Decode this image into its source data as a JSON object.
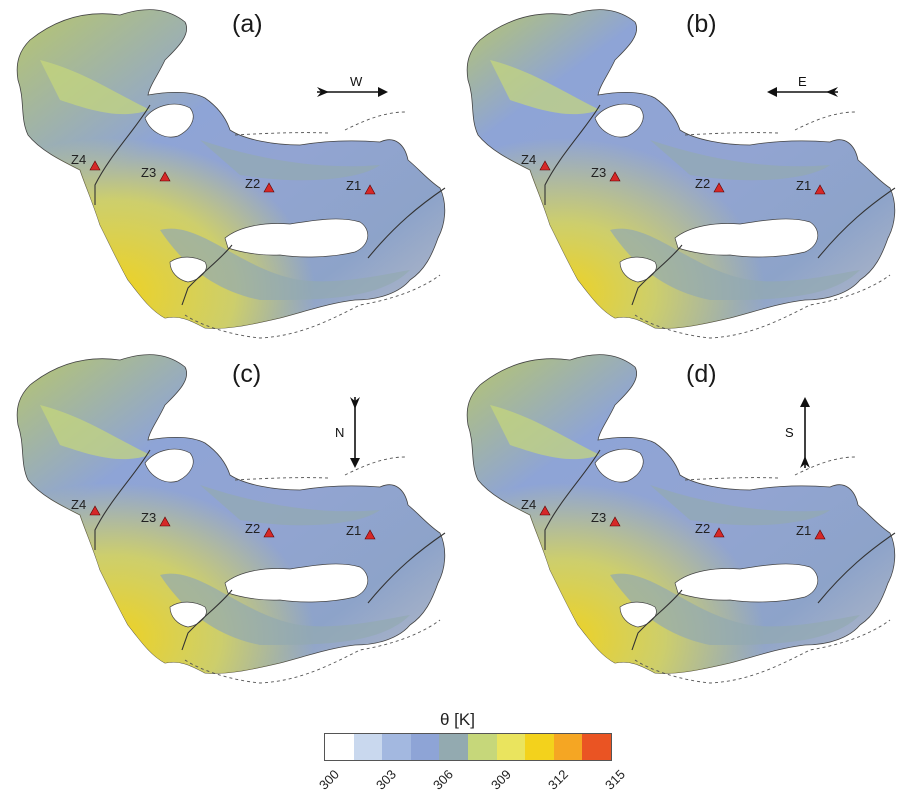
{
  "panels": [
    {
      "id": "a",
      "label": "(a)",
      "wind": {
        "dir": "W",
        "arrow": "right"
      },
      "warmth": 0.15
    },
    {
      "id": "b",
      "label": "(b)",
      "wind": {
        "dir": "E",
        "arrow": "left"
      },
      "warmth": 0.0
    },
    {
      "id": "c",
      "label": "(c)",
      "wind": {
        "dir": "N",
        "arrow": "down"
      },
      "warmth": 0.08
    },
    {
      "id": "d",
      "label": "(d)",
      "wind": {
        "dir": "S",
        "arrow": "up"
      },
      "warmth": 0.05
    }
  ],
  "stations": [
    "Z1",
    "Z2",
    "Z3",
    "Z4"
  ],
  "colorbar": {
    "title": "θ [K]",
    "ticks": [
      "300",
      "303",
      "306",
      "309",
      "312",
      "315"
    ],
    "colors": [
      "#ffffff",
      "#c9d8ee",
      "#a3b8e0",
      "#8ea4d6",
      "#93aab0",
      "#c6d77a",
      "#eae45e",
      "#f3d21c",
      "#f5a623",
      "#ea5423"
    ]
  },
  "station_color": "#d62828"
}
